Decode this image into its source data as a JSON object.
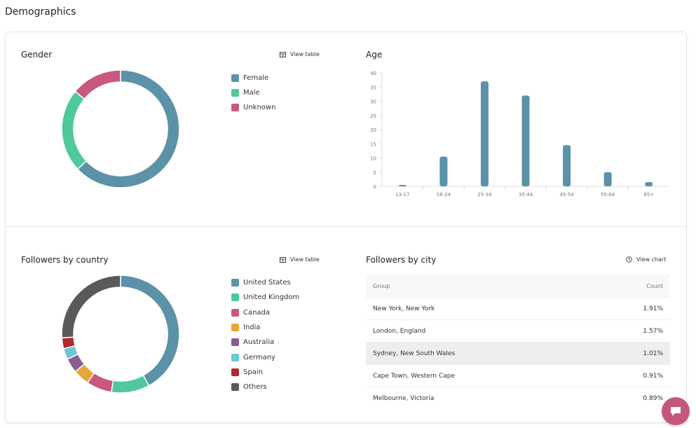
{
  "page": {
    "title": "Demographics"
  },
  "gender": {
    "title": "Gender",
    "view_table_label": "View table",
    "legend": [
      {
        "label": "Female",
        "color": "#5b92a8"
      },
      {
        "label": "Male",
        "color": "#4fc99b"
      },
      {
        "label": "Unknown",
        "color": "#c9587e"
      }
    ]
  },
  "age": {
    "title": "Age"
  },
  "country": {
    "title": "Followers by country",
    "view_table_label": "View table",
    "legend": [
      {
        "label": "United States",
        "color": "#5b92a8"
      },
      {
        "label": "United Kingdom",
        "color": "#4fc99b"
      },
      {
        "label": "Canada",
        "color": "#c9587e"
      },
      {
        "label": "India",
        "color": "#e5a837"
      },
      {
        "label": "Australia",
        "color": "#8a5d94"
      },
      {
        "label": "Germany",
        "color": "#6cc7d6"
      },
      {
        "label": "Spain",
        "color": "#b3282d"
      },
      {
        "label": "Others",
        "color": "#5a5a5a"
      }
    ]
  },
  "city": {
    "title": "Followers by city",
    "view_chart_label": "View chart",
    "columns": {
      "group": "Group",
      "count": "Count"
    },
    "rows": [
      {
        "group": "New York, New York",
        "count": "1.91%"
      },
      {
        "group": "London, England",
        "count": "1.57%"
      },
      {
        "group": "Sydney, New South Wales",
        "count": "1.01%"
      },
      {
        "group": "Cape Town, Western Cape",
        "count": "0.91%"
      },
      {
        "group": "Melbourne, Victoria",
        "count": "0.89%"
      }
    ]
  },
  "chart_data": [
    {
      "type": "pie",
      "categories": [
        "Female",
        "Male",
        "Unknown"
      ],
      "values": [
        63,
        23,
        14
      ],
      "colors": [
        "#5b92a8",
        "#4fc99b",
        "#c9587e"
      ],
      "donut": true
    },
    {
      "type": "bar",
      "title": "Age",
      "categories": [
        "13-17",
        "18-24",
        "25-34",
        "35-44",
        "45-54",
        "55-64",
        "65+"
      ],
      "values": [
        0.5,
        10.5,
        37,
        32,
        14.5,
        5,
        1.5
      ],
      "ylim": [
        0,
        40
      ],
      "yticks": [
        0,
        5,
        10,
        15,
        20,
        25,
        30,
        35,
        40
      ],
      "color": "#5b92a8",
      "grid": false
    },
    {
      "type": "pie",
      "categories": [
        "United States",
        "United Kingdom",
        "Canada",
        "India",
        "Australia",
        "Germany",
        "Spain",
        "Others"
      ],
      "values": [
        42,
        10.5,
        7,
        4.5,
        4,
        3,
        3,
        26
      ],
      "colors": [
        "#5b92a8",
        "#4fc99b",
        "#c9587e",
        "#e5a837",
        "#8a5d94",
        "#6cc7d6",
        "#b3282d",
        "#5a5a5a"
      ],
      "donut": true
    }
  ]
}
